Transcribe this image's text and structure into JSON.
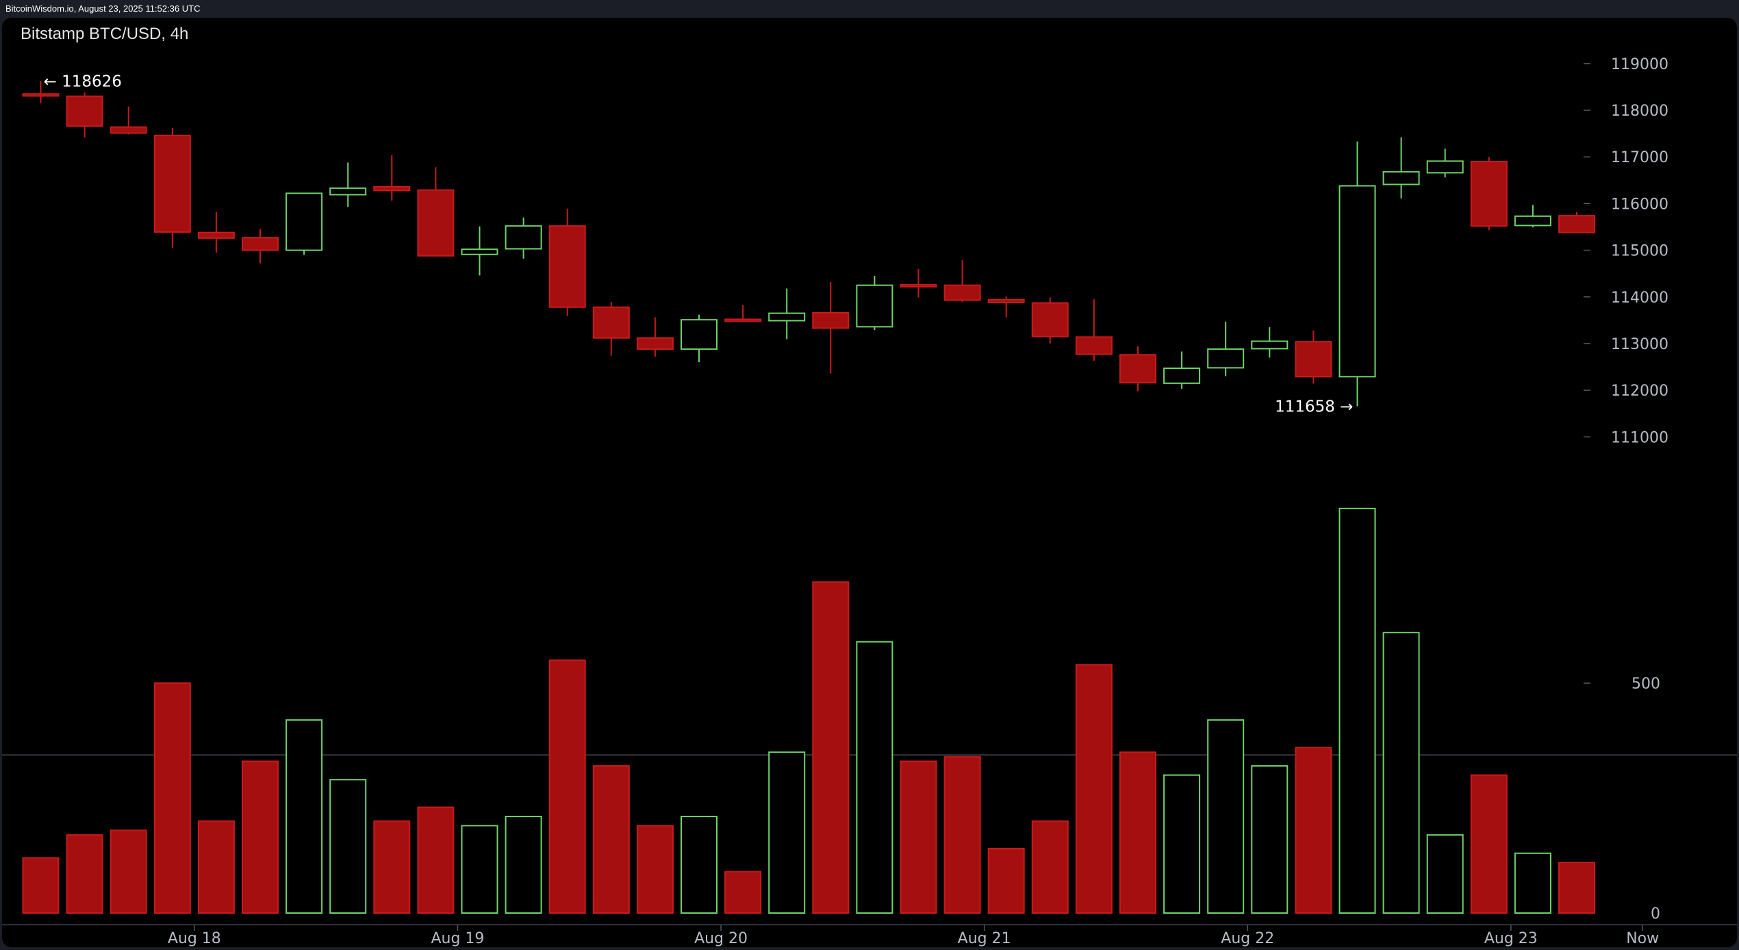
{
  "header": {
    "source_line": "BitcoinWisdom.io, August 23, 2025 11:52:36 UTC"
  },
  "colors": {
    "background": "#000000",
    "up": "#6fd36b",
    "down": "#a50f0f",
    "down_outline": "#c81b1b",
    "axis_text": "#b7bcc6",
    "separator": "#3c4048"
  },
  "chart_data": {
    "type": "candlestick",
    "title": "Bitstamp BTC/USD, 4h",
    "interval": "4h",
    "price_axis": {
      "ticks": [
        111000,
        112000,
        113000,
        114000,
        115000,
        116000,
        117000,
        118000,
        119000
      ],
      "tick_labels": [
        "111000",
        "112000",
        "113000",
        "114000",
        "115000",
        "116000",
        "117000",
        "118000",
        "119000"
      ],
      "range": [
        110300,
        119600
      ]
    },
    "volume_axis": {
      "ticks": [
        0,
        500
      ],
      "tick_labels": [
        "0",
        "500"
      ],
      "range": [
        0,
        920
      ]
    },
    "x_axis": {
      "labels": [
        {
          "label": "Aug 18",
          "after_candle": 4
        },
        {
          "label": "Aug 19",
          "after_candle": 10
        },
        {
          "label": "Aug 20",
          "after_candle": 16
        },
        {
          "label": "Aug 21",
          "after_candle": 22
        },
        {
          "label": "Aug 22",
          "after_candle": 28
        },
        {
          "label": "Aug 23",
          "after_candle": 34
        },
        {
          "label": "Now",
          "after_candle": 37
        }
      ]
    },
    "annotations": {
      "high": {
        "value": 118626,
        "text": "← 118626",
        "candle": 0
      },
      "low": {
        "value": 111658,
        "text": "111658 →",
        "candle": 30
      }
    },
    "candles": [
      {
        "o": 118350,
        "h": 118626,
        "l": 118150,
        "c": 118310,
        "v": 120
      },
      {
        "o": 118300,
        "h": 118380,
        "l": 117420,
        "c": 117660,
        "v": 170
      },
      {
        "o": 117640,
        "h": 118080,
        "l": 117480,
        "c": 117510,
        "v": 180
      },
      {
        "o": 117460,
        "h": 117620,
        "l": 115050,
        "c": 115390,
        "v": 500
      },
      {
        "o": 115380,
        "h": 115820,
        "l": 114950,
        "c": 115260,
        "v": 200
      },
      {
        "o": 115270,
        "h": 115450,
        "l": 114720,
        "c": 115000,
        "v": 330
      },
      {
        "o": 115000,
        "h": 116230,
        "l": 114900,
        "c": 116220,
        "v": 420
      },
      {
        "o": 116190,
        "h": 116880,
        "l": 115930,
        "c": 116330,
        "v": 290
      },
      {
        "o": 116360,
        "h": 117040,
        "l": 116060,
        "c": 116280,
        "v": 200
      },
      {
        "o": 116290,
        "h": 116780,
        "l": 114870,
        "c": 114880,
        "v": 230
      },
      {
        "o": 114910,
        "h": 115510,
        "l": 114460,
        "c": 115020,
        "v": 190
      },
      {
        "o": 115030,
        "h": 115700,
        "l": 114820,
        "c": 115520,
        "v": 210
      },
      {
        "o": 115520,
        "h": 115890,
        "l": 113590,
        "c": 113780,
        "v": 550
      },
      {
        "o": 113780,
        "h": 113890,
        "l": 112740,
        "c": 113120,
        "v": 320
      },
      {
        "o": 113120,
        "h": 113560,
        "l": 112720,
        "c": 112880,
        "v": 190
      },
      {
        "o": 112880,
        "h": 113620,
        "l": 112600,
        "c": 113510,
        "v": 210
      },
      {
        "o": 113520,
        "h": 113820,
        "l": 113470,
        "c": 113480,
        "v": 90
      },
      {
        "o": 113490,
        "h": 114180,
        "l": 113090,
        "c": 113650,
        "v": 350
      },
      {
        "o": 113660,
        "h": 114320,
        "l": 112360,
        "c": 113330,
        "v": 720
      },
      {
        "o": 113360,
        "h": 114450,
        "l": 113290,
        "c": 114250,
        "v": 590
      },
      {
        "o": 114260,
        "h": 114600,
        "l": 113990,
        "c": 114240,
        "v": 330
      },
      {
        "o": 114250,
        "h": 114790,
        "l": 113890,
        "c": 113930,
        "v": 340
      },
      {
        "o": 113940,
        "h": 114010,
        "l": 113560,
        "c": 113880,
        "v": 140
      },
      {
        "o": 113870,
        "h": 113990,
        "l": 113000,
        "c": 113150,
        "v": 200
      },
      {
        "o": 113140,
        "h": 113950,
        "l": 112630,
        "c": 112770,
        "v": 540
      },
      {
        "o": 112760,
        "h": 112940,
        "l": 111980,
        "c": 112160,
        "v": 350
      },
      {
        "o": 112150,
        "h": 112830,
        "l": 112030,
        "c": 112470,
        "v": 300
      },
      {
        "o": 112480,
        "h": 113470,
        "l": 112300,
        "c": 112880,
        "v": 420
      },
      {
        "o": 112890,
        "h": 113350,
        "l": 112700,
        "c": 113050,
        "v": 320
      },
      {
        "o": 113040,
        "h": 113280,
        "l": 112140,
        "c": 112290,
        "v": 360
      },
      {
        "o": 112290,
        "h": 117330,
        "l": 111658,
        "c": 116380,
        "v": 880
      },
      {
        "o": 116410,
        "h": 117420,
        "l": 116110,
        "c": 116680,
        "v": 610
      },
      {
        "o": 116660,
        "h": 117180,
        "l": 116560,
        "c": 116910,
        "v": 170
      },
      {
        "o": 116900,
        "h": 117000,
        "l": 115430,
        "c": 115520,
        "v": 300
      },
      {
        "o": 115530,
        "h": 115970,
        "l": 115490,
        "c": 115730,
        "v": 130
      },
      {
        "o": 115740,
        "h": 115820,
        "l": 115370,
        "c": 115380,
        "v": 110
      }
    ]
  }
}
